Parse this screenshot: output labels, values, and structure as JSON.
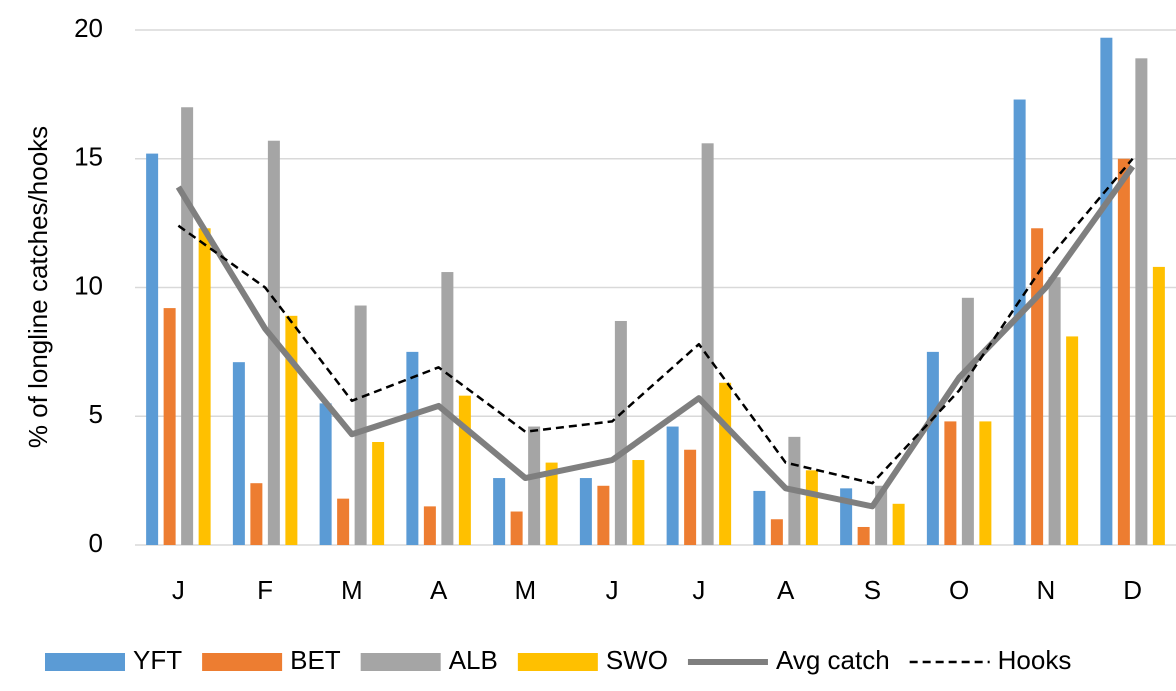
{
  "chart_data": {
    "type": "bar",
    "ylabel": "% of longline catches/hooks",
    "categories": [
      "J",
      "F",
      "M",
      "A",
      "M",
      "J",
      "J",
      "A",
      "S",
      "O",
      "N",
      "D"
    ],
    "ylim": [
      0,
      20
    ],
    "yticks": [
      0,
      5,
      10,
      15,
      20
    ],
    "grid": true,
    "legend": "bottom",
    "series": [
      {
        "name": "YFT",
        "type": "bar",
        "color": "#5b9bd5",
        "values": [
          15.2,
          7.1,
          5.5,
          7.5,
          2.6,
          2.6,
          4.6,
          2.1,
          2.2,
          7.5,
          17.3,
          19.7
        ]
      },
      {
        "name": "BET",
        "type": "bar",
        "color": "#ed7d31",
        "values": [
          9.2,
          2.4,
          1.8,
          1.5,
          1.3,
          2.3,
          3.7,
          1.0,
          0.7,
          4.8,
          12.3,
          15.0
        ]
      },
      {
        "name": "ALB",
        "type": "bar",
        "color": "#a5a5a5",
        "values": [
          17.0,
          15.7,
          9.3,
          10.6,
          4.6,
          8.7,
          15.6,
          4.2,
          2.3,
          9.6,
          10.4,
          18.9
        ]
      },
      {
        "name": "SWO",
        "type": "bar",
        "color": "#ffc000",
        "values": [
          12.3,
          8.9,
          4.0,
          5.8,
          3.2,
          3.3,
          6.3,
          2.9,
          1.6,
          4.8,
          8.1,
          10.8
        ]
      },
      {
        "name": "Avg catch",
        "type": "line",
        "color": "#7f7f7f",
        "values": [
          13.9,
          8.4,
          4.3,
          5.4,
          2.6,
          3.3,
          5.7,
          2.2,
          1.5,
          6.5,
          10.0,
          14.7
        ]
      },
      {
        "name": "Hooks",
        "type": "line",
        "dash": true,
        "color": "#000000",
        "values": [
          12.4,
          10.0,
          5.6,
          6.9,
          4.4,
          4.8,
          7.8,
          3.2,
          2.4,
          6.0,
          11.0,
          15.0
        ]
      }
    ]
  }
}
